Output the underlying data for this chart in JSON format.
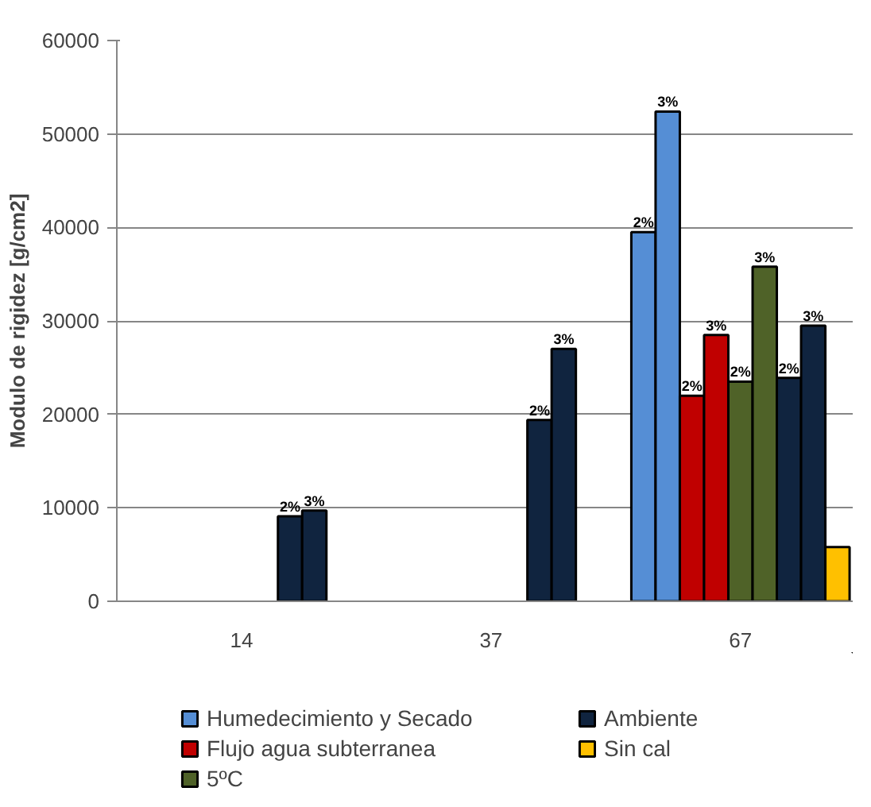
{
  "chart_data": {
    "type": "bar",
    "ylabel": "Modulo de rigidez [g/cm2]",
    "categories": [
      "14",
      "37",
      "67"
    ],
    "ylim": [
      0,
      60000
    ],
    "yticks": [
      0,
      10000,
      20000,
      30000,
      40000,
      50000,
      60000
    ],
    "grid": "y",
    "legend": "bottom",
    "series": [
      {
        "name": "Humedecimiento y Secado",
        "color": "#558ed5",
        "values": [
          null,
          null,
          39500
        ]
      },
      {
        "color": "#558ed5",
        "values": [
          null,
          null,
          52400
        ]
      },
      {
        "name": "Flujo agua subterranea",
        "color": "#c00000",
        "values": [
          null,
          null,
          22000
        ]
      },
      {
        "color": "#c00000",
        "values": [
          null,
          null,
          28500
        ]
      },
      {
        "name": "5ºC",
        "color": "#4f6228",
        "values": [
          null,
          null,
          23500
        ]
      },
      {
        "color": "#4f6228",
        "values": [
          null,
          null,
          35800
        ]
      },
      {
        "name": "Ambiente",
        "color": "#10243f",
        "values": [
          9100,
          19400,
          23900
        ]
      },
      {
        "color": "#10243f",
        "values": [
          9700,
          27000,
          29500
        ]
      },
      {
        "name": "Sin cal",
        "color": "#ffc000",
        "values": [
          null,
          null,
          5800
        ]
      }
    ],
    "annotations": [
      "2%",
      "3%",
      "2%",
      "3%",
      "2%",
      "3%",
      "2%",
      "2%",
      "2%",
      "3%",
      "3%",
      "3%"
    ]
  }
}
